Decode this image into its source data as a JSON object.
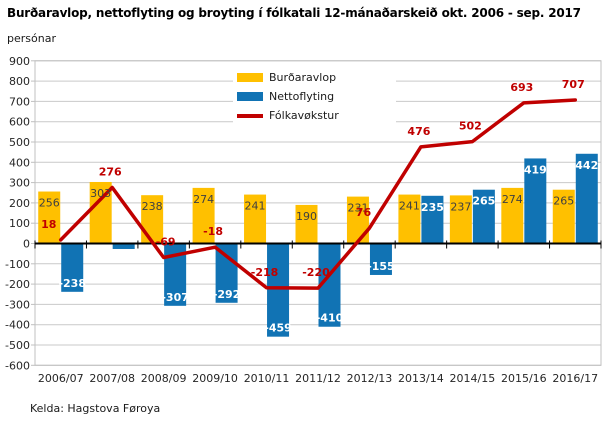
{
  "header": {
    "title": "Burðaravlop, nettoflyting og broyting í fólkatali 12-mánaðarskeið okt. 2006 - sep. 2017",
    "unit_label": "persónar"
  },
  "footer": {
    "source": "Kelda: Hagstova Føroya"
  },
  "chart_data": {
    "type": "combo",
    "categories": [
      "2006/07",
      "2007/08",
      "2008/09",
      "2009/10",
      "2010/11",
      "2011/12",
      "2012/13",
      "2013/14",
      "2014/15",
      "2015/16",
      "2016/17"
    ],
    "series": [
      {
        "name": "Burðaravlop",
        "type": "bar",
        "color": "#FFC000",
        "label_color": "#404040",
        "values": [
          256,
          303,
          238,
          274,
          241,
          190,
          231,
          241,
          237,
          274,
          265
        ],
        "labels": [
          "256",
          "303",
          "238",
          "274",
          "241",
          "190",
          "231",
          "241",
          "237",
          "274",
          "265"
        ]
      },
      {
        "name": "Nettoflyting",
        "type": "bar",
        "color": "#1173B4",
        "label_color": "#FFFFFF",
        "values": [
          -238,
          -27,
          -307,
          -292,
          -459,
          -410,
          -155,
          235,
          265,
          419,
          442
        ],
        "labels": [
          "-238",
          "",
          "-307",
          "-292",
          "-459",
          "-410",
          "-155",
          "235",
          "265",
          "419",
          "442"
        ]
      },
      {
        "name": "Fólkavøkstur",
        "type": "line",
        "color": "#C00000",
        "label_color": "#C00000",
        "values": [
          18,
          276,
          -69,
          -18,
          -218,
          -220,
          76,
          476,
          502,
          693,
          707
        ],
        "labels": [
          "18",
          "276",
          "-69",
          "-18",
          "-218",
          "-220",
          "76",
          "476",
          "502",
          "693",
          "707"
        ]
      }
    ],
    "ylabel": "persónar",
    "ylim": [
      -600,
      900
    ],
    "ytick_step": 100,
    "grid": true,
    "legend_position": "overlay-top-center",
    "axis_colors": {
      "gridline": "#C9C9C9",
      "plot_border": "#C0C0C0",
      "zero_axis": "#000000",
      "tick_label": "#262626"
    }
  }
}
